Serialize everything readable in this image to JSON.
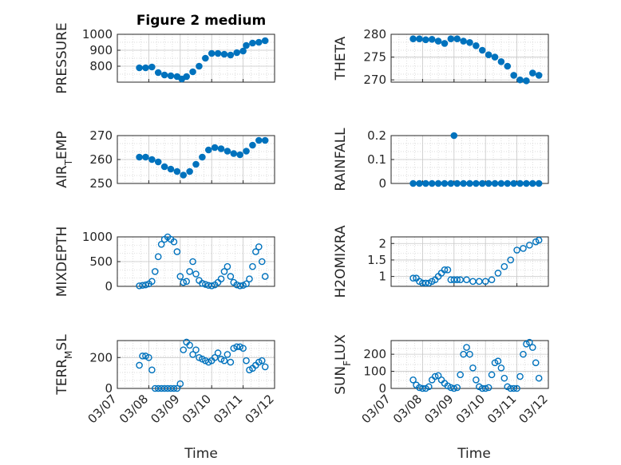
{
  "figure": {
    "title": "Figure 2 medium"
  },
  "colors": {
    "marker": "#0072BD",
    "axis": "#262626",
    "grid": "#b0b0b0"
  },
  "chart_data": [
    {
      "type": "scatter",
      "ylabel": "PRESSURE",
      "title": "Figure 2 medium",
      "xlim": [
        "03/07",
        "03/12"
      ],
      "ylim": [
        700,
        1000
      ],
      "yticks": [
        800,
        900,
        1000
      ],
      "grid": true,
      "marker": "filled",
      "x": [
        7.7,
        7.9,
        8.1,
        8.3,
        8.5,
        8.7,
        8.9,
        9.05,
        9.2,
        9.4,
        9.6,
        9.8,
        10.0,
        10.2,
        10.4,
        10.6,
        10.8,
        11.0,
        11.1,
        11.3,
        11.5,
        11.7
      ],
      "y": [
        790,
        790,
        795,
        760,
        745,
        740,
        735,
        720,
        735,
        765,
        800,
        850,
        880,
        880,
        875,
        870,
        885,
        895,
        930,
        945,
        950,
        960
      ]
    },
    {
      "type": "scatter",
      "ylabel": "THETA",
      "xlim": [
        "03/07",
        "03/12"
      ],
      "ylim": [
        269.5,
        280
      ],
      "yticks": [
        270,
        275,
        280
      ],
      "grid": true,
      "marker": "filled",
      "x": [
        7.7,
        7.9,
        8.1,
        8.3,
        8.5,
        8.7,
        8.9,
        9.1,
        9.3,
        9.5,
        9.7,
        9.9,
        10.1,
        10.3,
        10.5,
        10.7,
        10.9,
        11.1,
        11.3,
        11.5,
        11.7
      ],
      "y": [
        279,
        279,
        278.8,
        278.9,
        278.5,
        278,
        279,
        279,
        278.5,
        278.2,
        277.5,
        276.5,
        275.5,
        275,
        274,
        273,
        271,
        270,
        269.8,
        271.5,
        271
      ]
    },
    {
      "type": "scatter",
      "ylabel": "AIR_TEMP",
      "xlim": [
        "03/07",
        "03/12"
      ],
      "ylim": [
        250,
        270
      ],
      "yticks": [
        250,
        260,
        270
      ],
      "grid": true,
      "marker": "filled",
      "x": [
        7.7,
        7.9,
        8.1,
        8.3,
        8.5,
        8.7,
        8.9,
        9.1,
        9.3,
        9.5,
        9.7,
        9.9,
        10.1,
        10.3,
        10.5,
        10.7,
        10.9,
        11.1,
        11.3,
        11.5,
        11.7
      ],
      "y": [
        261,
        261,
        260,
        259,
        257,
        256,
        255,
        253.5,
        255,
        258,
        261,
        264,
        265,
        264.5,
        263.5,
        262.5,
        262,
        263.5,
        266,
        268,
        268
      ]
    },
    {
      "type": "scatter",
      "ylabel": "RAINFALL",
      "xlim": [
        "03/07",
        "03/12"
      ],
      "ylim": [
        0,
        0.2
      ],
      "yticks": [
        0,
        0.1,
        0.2
      ],
      "grid": true,
      "marker": "filled",
      "x": [
        7.7,
        7.9,
        8.1,
        8.3,
        8.5,
        8.7,
        8.9,
        9.0,
        9.1,
        9.3,
        9.5,
        9.7,
        9.9,
        10.1,
        10.3,
        10.5,
        10.7,
        10.9,
        11.1,
        11.3,
        11.5,
        11.7
      ],
      "y": [
        0,
        0,
        0,
        0,
        0,
        0,
        0,
        0.2,
        0,
        0,
        0,
        0,
        0,
        0,
        0,
        0,
        0,
        0,
        0,
        0,
        0,
        0
      ]
    },
    {
      "type": "scatter",
      "ylabel": "MIXDEPTH",
      "xlim": [
        "03/07",
        "03/12"
      ],
      "ylim": [
        0,
        1000
      ],
      "yticks": [
        0,
        500,
        1000
      ],
      "grid": true,
      "marker": "open",
      "x": [
        7.7,
        7.8,
        7.9,
        8.0,
        8.1,
        8.2,
        8.3,
        8.4,
        8.5,
        8.6,
        8.7,
        8.8,
        8.9,
        9.0,
        9.1,
        9.2,
        9.3,
        9.4,
        9.5,
        9.6,
        9.7,
        9.8,
        9.9,
        10.0,
        10.1,
        10.2,
        10.3,
        10.4,
        10.5,
        10.6,
        10.7,
        10.8,
        10.9,
        11.0,
        11.1,
        11.2,
        11.3,
        11.4,
        11.5,
        11.6,
        11.7
      ],
      "y": [
        10,
        20,
        30,
        50,
        100,
        300,
        600,
        850,
        950,
        1000,
        950,
        900,
        700,
        200,
        80,
        100,
        300,
        500,
        250,
        120,
        60,
        40,
        20,
        10,
        30,
        80,
        150,
        300,
        400,
        200,
        80,
        30,
        10,
        20,
        50,
        150,
        400,
        700,
        800,
        500,
        200
      ]
    },
    {
      "type": "scatter",
      "ylabel": "H2OMIXRA",
      "xlim": [
        "03/07",
        "03/12"
      ],
      "ylim": [
        0.7,
        2.2
      ],
      "yticks": [
        1,
        1.5,
        2
      ],
      "grid": true,
      "marker": "open",
      "x": [
        7.7,
        7.8,
        7.9,
        8.0,
        8.1,
        8.2,
        8.3,
        8.4,
        8.5,
        8.6,
        8.7,
        8.8,
        8.9,
        9.0,
        9.1,
        9.2,
        9.4,
        9.6,
        9.8,
        10.0,
        10.2,
        10.4,
        10.6,
        10.8,
        11.0,
        11.2,
        11.4,
        11.6,
        11.7
      ],
      "y": [
        0.95,
        0.95,
        0.85,
        0.8,
        0.8,
        0.8,
        0.85,
        0.9,
        1.0,
        1.1,
        1.2,
        1.2,
        0.9,
        0.9,
        0.9,
        0.9,
        0.9,
        0.85,
        0.85,
        0.85,
        0.9,
        1.1,
        1.3,
        1.5,
        1.8,
        1.85,
        1.95,
        2.05,
        2.1
      ]
    },
    {
      "type": "scatter",
      "ylabel": "TERR_MSL",
      "xlim": [
        "03/07",
        "03/12"
      ],
      "ylim": [
        0,
        310
      ],
      "yticks": [
        0,
        200
      ],
      "grid": true,
      "marker": "open",
      "x": [
        7.7,
        7.8,
        7.9,
        8.0,
        8.1,
        8.2,
        8.3,
        8.4,
        8.5,
        8.6,
        8.7,
        8.8,
        8.9,
        9.0,
        9.1,
        9.2,
        9.3,
        9.4,
        9.5,
        9.6,
        9.7,
        9.8,
        9.9,
        10.0,
        10.1,
        10.2,
        10.3,
        10.4,
        10.5,
        10.6,
        10.7,
        10.8,
        10.9,
        11.0,
        11.1,
        11.2,
        11.3,
        11.4,
        11.5,
        11.6,
        11.7
      ],
      "y": [
        150,
        210,
        210,
        200,
        120,
        0,
        0,
        0,
        0,
        0,
        0,
        0,
        0,
        30,
        250,
        300,
        280,
        220,
        250,
        200,
        190,
        180,
        170,
        180,
        200,
        230,
        190,
        180,
        220,
        170,
        260,
        270,
        270,
        260,
        180,
        120,
        130,
        150,
        170,
        180,
        140
      ]
    },
    {
      "type": "scatter",
      "ylabel": "SUN_FLUX",
      "xlim": [
        "03/07",
        "03/12"
      ],
      "ylim": [
        0,
        280
      ],
      "yticks": [
        0,
        100,
        200
      ],
      "xticks": [
        "03/07",
        "03/08",
        "03/09",
        "03/10",
        "03/11",
        "03/12"
      ],
      "xlabel": "Time",
      "grid": true,
      "marker": "open",
      "x": [
        7.7,
        7.8,
        7.9,
        8.0,
        8.1,
        8.2,
        8.3,
        8.4,
        8.5,
        8.6,
        8.7,
        8.8,
        8.9,
        9.0,
        9.1,
        9.2,
        9.3,
        9.4,
        9.5,
        9.6,
        9.7,
        9.8,
        9.9,
        10.0,
        10.1,
        10.2,
        10.3,
        10.4,
        10.5,
        10.6,
        10.7,
        10.8,
        10.9,
        11.0,
        11.1,
        11.2,
        11.3,
        11.4,
        11.5,
        11.6,
        11.7
      ],
      "y": [
        50,
        20,
        5,
        0,
        0,
        10,
        50,
        70,
        75,
        50,
        30,
        15,
        5,
        0,
        5,
        80,
        200,
        240,
        200,
        120,
        50,
        10,
        0,
        0,
        5,
        80,
        150,
        160,
        120,
        60,
        10,
        0,
        0,
        0,
        70,
        200,
        260,
        270,
        240,
        150,
        60
      ]
    }
  ],
  "shared_xlabel": "Time",
  "xtick_labels": [
    "03/07",
    "03/08",
    "03/09",
    "03/10",
    "03/11",
    "03/12"
  ]
}
